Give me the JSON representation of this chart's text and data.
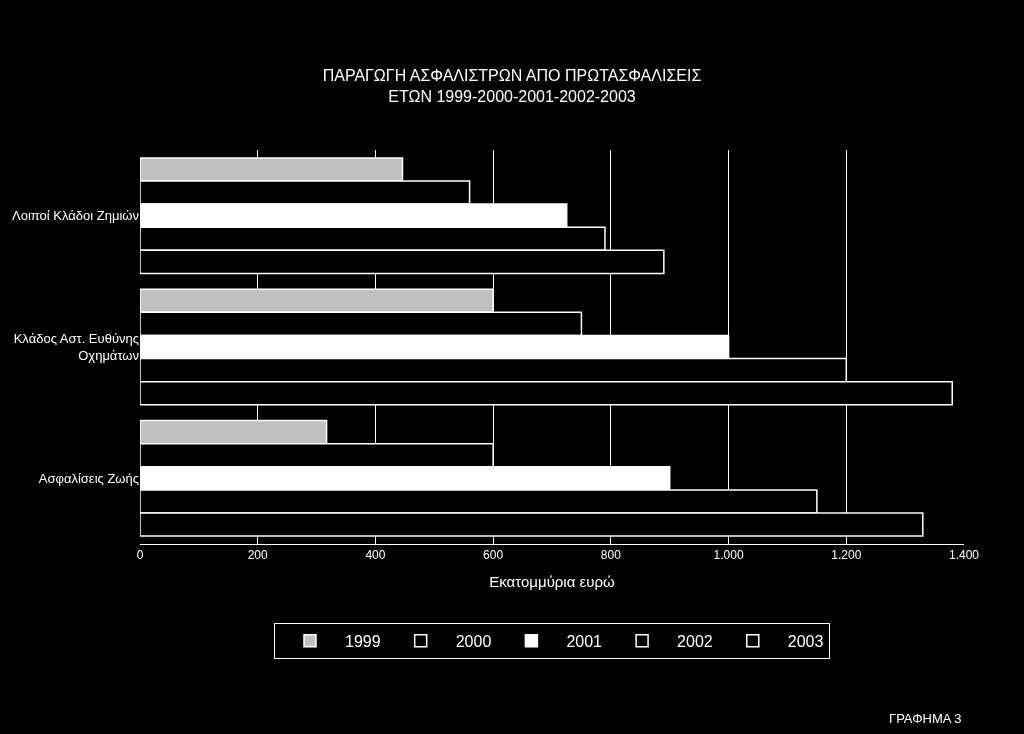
{
  "chart_data": {
    "type": "bar",
    "orientation": "horizontal",
    "title": "ΠΑΡΑΓΩΓΗ ΑΣΦΑΛΙΣΤΡΩΝ ΑΠΟ ΠΡΩΤΑΣΦΑΛΙΣΕΙΣ\nΕΤΩΝ 1999-2000-2001-2002-2003",
    "xlabel": "Εκατομμύρια ευρώ",
    "categories": [
      "Λοιποί Κλάδοι Ζημιών",
      "Κλάδος Αστ. Ευθύνης\nΟχημάτων",
      "Ασφαλίσεις Ζωής"
    ],
    "series": [
      {
        "name": "1999",
        "color": "#c0c0c0",
        "values": [
          446,
          600,
          317
        ]
      },
      {
        "name": "2000",
        "color": "#000000",
        "values": [
          560,
          750,
          600
        ]
      },
      {
        "name": "2001",
        "color": "#ffffff",
        "values": [
          725,
          1000,
          900
        ]
      },
      {
        "name": "2002",
        "color": "#000000",
        "values": [
          790,
          1200,
          1150
        ]
      },
      {
        "name": "2003",
        "color": "#000000",
        "values": [
          890,
          1380,
          1330
        ]
      }
    ],
    "xlim": [
      0,
      1400
    ],
    "xticks": [
      0,
      200,
      400,
      600,
      800,
      {
        "value": 1000,
        "label": "1.000"
      },
      {
        "value": 1200,
        "label": "1.200"
      },
      {
        "value": 1400,
        "label": "1.400"
      }
    ],
    "grid": "x",
    "legend": "bottom",
    "annotations": [
      "ΓΡΑΦΗΜΑ 3"
    ]
  }
}
